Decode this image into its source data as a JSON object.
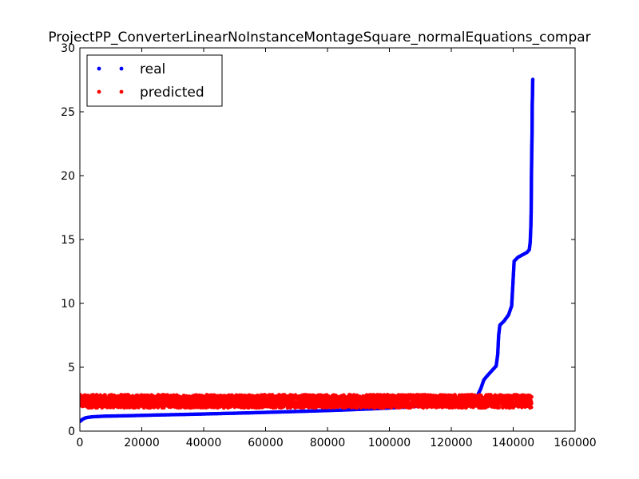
{
  "chart_data": {
    "type": "scatter",
    "title": "ProjectPP_ConverterLinearNoInstanceMontageSquare_normalEquations_compar",
    "xlabel": "",
    "ylabel": "",
    "xlim": [
      0,
      160000
    ],
    "ylim": [
      0,
      30
    ],
    "x_ticks": [
      0,
      20000,
      40000,
      60000,
      80000,
      100000,
      120000,
      140000,
      160000
    ],
    "x_tick_labels": [
      "0",
      "20000",
      "40000",
      "60000",
      "80000",
      "100000",
      "120000",
      "140000",
      "160000"
    ],
    "y_ticks": [
      0,
      5,
      10,
      15,
      20,
      25,
      30
    ],
    "y_tick_labels": [
      "0",
      "5",
      "10",
      "15",
      "20",
      "25",
      "30"
    ],
    "grid": false,
    "legend_position": "top-left",
    "series": [
      {
        "name": "real",
        "color": "#0000ff",
        "points": [
          [
            0,
            0.75
          ],
          [
            1000,
            0.95
          ],
          [
            2000,
            1.05
          ],
          [
            4000,
            1.12
          ],
          [
            8000,
            1.17
          ],
          [
            15000,
            1.2
          ],
          [
            25000,
            1.26
          ],
          [
            35000,
            1.31
          ],
          [
            45000,
            1.37
          ],
          [
            55000,
            1.43
          ],
          [
            65000,
            1.5
          ],
          [
            75000,
            1.57
          ],
          [
            85000,
            1.65
          ],
          [
            95000,
            1.75
          ],
          [
            105000,
            1.87
          ],
          [
            115000,
            2.05
          ],
          [
            122000,
            2.25
          ],
          [
            126000,
            2.45
          ],
          [
            128500,
            2.8
          ],
          [
            129500,
            3.3
          ],
          [
            130500,
            4.0
          ],
          [
            131500,
            4.3
          ],
          [
            133000,
            4.7
          ],
          [
            134500,
            5.1
          ],
          [
            135000,
            6.0
          ],
          [
            135300,
            7.5
          ],
          [
            135700,
            8.3
          ],
          [
            137000,
            8.6
          ],
          [
            138500,
            9.1
          ],
          [
            139500,
            9.8
          ],
          [
            139900,
            11.5
          ],
          [
            140300,
            13.3
          ],
          [
            141500,
            13.6
          ],
          [
            143000,
            13.8
          ],
          [
            144500,
            14.0
          ],
          [
            145200,
            14.2
          ],
          [
            145500,
            14.8
          ],
          [
            145700,
            16.0
          ],
          [
            145800,
            17.0
          ],
          [
            145850,
            18.5
          ],
          [
            145900,
            20.0
          ],
          [
            145950,
            21.0
          ],
          [
            146000,
            22.0
          ],
          [
            146050,
            22.6
          ],
          [
            146100,
            23.5
          ],
          [
            146150,
            25.5
          ],
          [
            146200,
            26.0
          ],
          [
            146250,
            26.6
          ],
          [
            146300,
            27.4
          ],
          [
            146350,
            27.6
          ]
        ]
      },
      {
        "name": "predicted",
        "color": "#ff0000",
        "band_x_range": [
          0,
          146000
        ],
        "band_y_range": [
          1.6,
          3.0
        ],
        "note_points_sample": [
          [
            0,
            2.3
          ],
          [
            20000,
            2.4
          ],
          [
            40000,
            2.3
          ],
          [
            60000,
            2.4
          ],
          [
            80000,
            2.3
          ],
          [
            100000,
            2.3
          ],
          [
            120000,
            2.3
          ],
          [
            140000,
            2.4
          ],
          [
            146000,
            2.6
          ]
        ]
      }
    ]
  }
}
